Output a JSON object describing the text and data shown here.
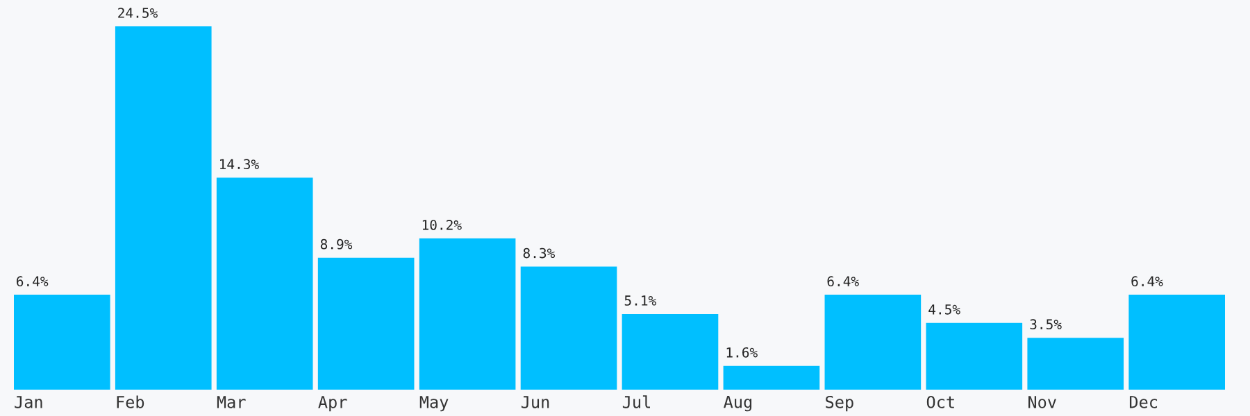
{
  "chart_data": {
    "type": "bar",
    "categories": [
      "Jan",
      "Feb",
      "Mar",
      "Apr",
      "May",
      "Jun",
      "Jul",
      "Aug",
      "Sep",
      "Oct",
      "Nov",
      "Dec"
    ],
    "values": [
      6.4,
      24.5,
      14.3,
      8.9,
      10.2,
      8.3,
      5.1,
      1.6,
      6.4,
      4.5,
      3.5,
      6.4
    ],
    "value_labels": [
      "6.4%",
      "24.5%",
      "14.3%",
      "8.9%",
      "10.2%",
      "8.3%",
      "5.1%",
      "1.6%",
      "6.4%",
      "4.5%",
      "3.5%",
      "6.4%"
    ],
    "color": "#00bfff",
    "grid": false,
    "legend": false
  }
}
